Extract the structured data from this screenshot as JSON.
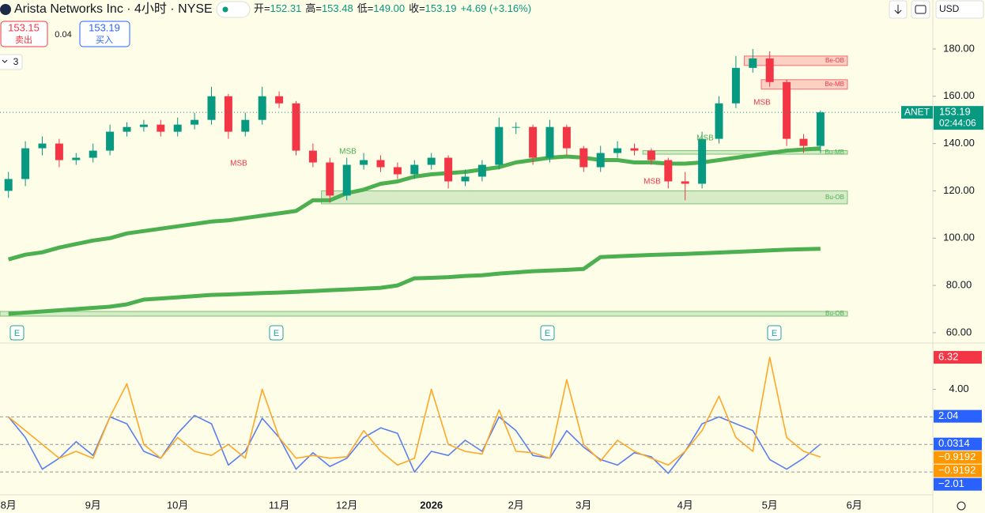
{
  "header": {
    "title": "Arista Networks Inc · 4小时 · NYSE",
    "ohlc": [
      {
        "label": "开=",
        "value": "152.31"
      },
      {
        "label": "高=",
        "value": "153.48"
      },
      {
        "label": "低=",
        "value": "149.00"
      },
      {
        "label": "收=",
        "value": "153.19"
      }
    ],
    "change": "+4.69 (+3.16%)",
    "sell": {
      "price": "153.15",
      "label": "卖出"
    },
    "spread": "0.04",
    "buy": {
      "price": "153.19",
      "label": "买入"
    },
    "indicators": "3",
    "currency": "USD"
  },
  "chart_data": [
    {
      "type": "candlestick",
      "categories": [
        "8月",
        null,
        null,
        null,
        null,
        "9月",
        null,
        null,
        null,
        null,
        "10月",
        null,
        null,
        null,
        null,
        null,
        "11月",
        null,
        null,
        null,
        "12月",
        null,
        null,
        null,
        null,
        "2026",
        null,
        null,
        null,
        null,
        "2月",
        null,
        null,
        null,
        "3月",
        null,
        null,
        null,
        null,
        null,
        "4月",
        null,
        null,
        null,
        null,
        "5月",
        null,
        null,
        null,
        null,
        "6月"
      ],
      "open": [
        120,
        125,
        138,
        140,
        133,
        134,
        137,
        145,
        147,
        148,
        145,
        148,
        150,
        160,
        145,
        150,
        160,
        157,
        137,
        132,
        118,
        131,
        133,
        130,
        127,
        131,
        134,
        124,
        126,
        131,
        147,
        147,
        134,
        147,
        138,
        130,
        136,
        138,
        137,
        133,
        124,
        123,
        142,
        157,
        172,
        176,
        166,
        142,
        139,
        null,
        null
      ],
      "high": [
        128,
        141,
        143,
        142,
        136,
        140,
        148,
        149,
        150,
        150,
        151,
        153,
        164,
        161,
        153,
        164,
        162,
        158,
        140,
        134,
        134,
        136,
        135,
        132,
        133,
        136,
        135,
        129,
        133,
        151,
        149,
        148,
        150,
        148,
        139,
        139,
        141,
        140,
        138,
        134,
        128,
        145,
        160,
        177,
        180,
        179,
        167,
        144,
        154,
        null,
        null
      ],
      "low": [
        117,
        122,
        135,
        130,
        131,
        132,
        135,
        143,
        145,
        143,
        143,
        146,
        148,
        142,
        143,
        148,
        155,
        135,
        130,
        115,
        116,
        129,
        128,
        125,
        125,
        129,
        121,
        122,
        124,
        129,
        144,
        131,
        132,
        135,
        128,
        128,
        134,
        135,
        131,
        121,
        116,
        121,
        140,
        155,
        170,
        164,
        139,
        136,
        136,
        null,
        null
      ],
      "close": [
        125,
        138,
        140,
        133,
        134,
        137,
        145,
        147,
        148,
        145,
        148,
        150,
        160,
        145,
        150,
        160,
        157,
        137,
        132,
        118,
        131,
        133,
        130,
        127,
        131,
        134,
        124,
        126,
        131,
        147,
        147,
        134,
        147,
        138,
        130,
        136,
        138,
        137,
        133,
        124,
        123,
        142,
        157,
        172,
        176,
        166,
        142,
        139,
        153.19,
        null,
        null
      ],
      "up_color": "#089981",
      "down_color": "#f23645",
      "lines": [
        {
          "color": "#4caf50",
          "values": [
            91,
            93,
            94,
            96,
            97.5,
            99,
            100,
            102,
            103,
            104,
            105,
            106,
            107,
            107.5,
            108.5,
            109.5,
            110.5,
            111.5,
            116,
            116,
            119,
            120.5,
            123,
            124,
            126,
            127,
            127.5,
            128,
            129,
            130,
            132,
            133,
            134,
            134.5,
            134,
            133,
            133,
            132,
            132,
            131.5,
            131.5,
            132,
            133,
            134,
            135,
            136,
            137,
            137.5,
            138,
            null,
            null
          ]
        },
        {
          "color": "#4caf50",
          "values": [
            68,
            68.5,
            69,
            69.5,
            70,
            70.5,
            71,
            72,
            74,
            74.5,
            75,
            75.5,
            76,
            76.2,
            76.5,
            76.8,
            77,
            77.3,
            77.6,
            78,
            78.3,
            78.6,
            79,
            80,
            83,
            83.2,
            83.5,
            84,
            84.3,
            85,
            85.5,
            86,
            86.3,
            86.6,
            87,
            92,
            92.3,
            92.6,
            92.9,
            93.1,
            93.3,
            93.6,
            93.9,
            94.2,
            94.5,
            94.8,
            95.1,
            95.3,
            95.5,
            null,
            null
          ]
        }
      ],
      "zones": [
        {
          "label": "Be-OB",
          "range": [
            173,
            177
          ],
          "from": 44,
          "color": "#f23645"
        },
        {
          "label": "Be-MB",
          "range": [
            163,
            167
          ],
          "from": 45,
          "color": "#f23645"
        },
        {
          "label": "Bu-MB",
          "range": [
            135.5,
            137
          ],
          "from": 38,
          "color": "#4caf50"
        },
        {
          "label": "Bu-OB",
          "range": [
            114.5,
            120
          ],
          "from": 19,
          "color": "#4caf50"
        },
        {
          "label": "Bu-OB",
          "range": [
            67,
            69
          ],
          "from": 0,
          "color": "#4caf50"
        }
      ],
      "annotations": [
        "MSB",
        "MSB",
        "MSB",
        "MSB",
        "MSB"
      ],
      "events": [
        "E",
        "E",
        "E",
        "E"
      ],
      "ylim": [
        56.3,
        200.7
      ],
      "yticks": [
        {
          "value": 180,
          "label": "180.00"
        },
        {
          "value": 160,
          "label": "160.00"
        },
        {
          "value": 140,
          "label": "140.00"
        },
        {
          "value": 120,
          "label": "120.00"
        },
        {
          "value": 100,
          "label": "100.00"
        },
        {
          "value": 80,
          "label": "80.00"
        },
        {
          "value": 60,
          "label": "60.00"
        }
      ],
      "last_price": {
        "symbol": "ANET",
        "value": 153.19,
        "countdown": "02:44:06"
      }
    },
    {
      "type": "line",
      "series": [
        {
          "color": "#5b7ff0",
          "values": [
            2,
            0.5,
            -1.8,
            -1,
            0.2,
            -0.8,
            2,
            1.5,
            -0.5,
            -1,
            0.8,
            2.1,
            1.5,
            -1.5,
            -0.5,
            1.9,
            0.5,
            -1.8,
            -0.6,
            -1.6,
            -1,
            0.5,
            1.2,
            0.8,
            -2,
            -0.5,
            -0.8,
            0.3,
            -0.5,
            2,
            1,
            -0.8,
            -1,
            1,
            -0.2,
            -1.1,
            -1.5,
            -0.6,
            -0.9,
            -2.1,
            -0.5,
            1.5,
            2,
            1.5,
            1,
            -1.1,
            -1.8,
            -1,
            0.0314,
            null,
            null
          ]
        },
        {
          "color": "#ffa726",
          "values": [
            2,
            1,
            0,
            -1,
            -0.5,
            -1,
            2,
            4.4,
            0,
            -1,
            0.5,
            -0.5,
            -0.8,
            0,
            -1,
            4,
            0.5,
            -1,
            -0.8,
            -1,
            -0.9,
            1,
            -0.5,
            -1.5,
            -1,
            4,
            0,
            -0.5,
            -0.7,
            2.5,
            -0.5,
            -0.6,
            -1,
            4.7,
            0,
            -1.2,
            0.3,
            -0.5,
            -1,
            -1.5,
            -0.5,
            1,
            3.5,
            0.5,
            -0.5,
            6.32,
            0.5,
            -0.5,
            -0.9192,
            null,
            null
          ]
        }
      ],
      "hlines": [
        2,
        0,
        -2
      ],
      "ylim": [
        -3.6,
        7.24
      ],
      "yticks": [
        {
          "value": 4,
          "label": "4.00"
        }
      ],
      "badges": [
        {
          "value": 6.32,
          "color": "#f23645"
        },
        {
          "value": 2.04,
          "color": "#2962ff"
        },
        {
          "value": 0.0314,
          "color": "#2962ff"
        },
        {
          "value": -0.9192,
          "label": "−0.9192",
          "color": "#ff9800"
        },
        {
          "value": -0.9192,
          "label": "−0.9192",
          "color": "#ff9800"
        },
        {
          "value": -2.01,
          "label": "−2.01",
          "color": "#2962ff"
        }
      ]
    }
  ]
}
